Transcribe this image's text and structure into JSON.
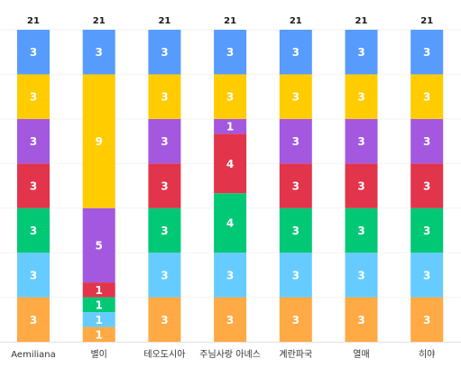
{
  "chart_data": {
    "type": "bar",
    "stacked": true,
    "orientation": "vertical",
    "categories": [
      "Aemiliana",
      "별이",
      "테오도시아",
      "주님사랑 아녜스",
      "계란파국",
      "열매",
      "히야"
    ],
    "series": [
      {
        "color": "#ffaa44",
        "values": [
          3,
          1,
          3,
          3,
          3,
          3,
          3
        ]
      },
      {
        "color": "#66ccff",
        "values": [
          3,
          1,
          3,
          3,
          3,
          3,
          3
        ]
      },
      {
        "color": "#00c875",
        "values": [
          3,
          1,
          3,
          4,
          3,
          3,
          3
        ]
      },
      {
        "color": "#e2344b",
        "values": [
          3,
          1,
          3,
          4,
          3,
          3,
          3
        ]
      },
      {
        "color": "#a358df",
        "values": [
          3,
          5,
          3,
          1,
          3,
          3,
          3
        ]
      },
      {
        "color": "#ffcc00",
        "values": [
          3,
          9,
          3,
          3,
          3,
          3,
          3
        ]
      },
      {
        "color": "#579bfc",
        "values": [
          3,
          3,
          3,
          3,
          3,
          3,
          3
        ]
      }
    ],
    "totals": [
      21,
      21,
      21,
      21,
      21,
      21,
      21
    ],
    "ylim": [
      0,
      21
    ],
    "grid": true,
    "legend": "none"
  }
}
